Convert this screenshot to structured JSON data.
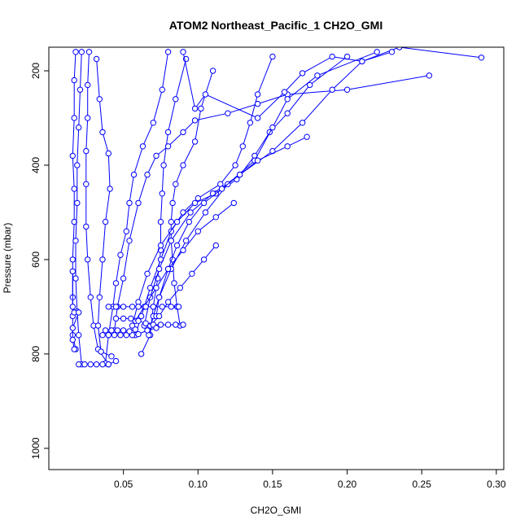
{
  "chart_data": {
    "type": "line",
    "title": "ATOM2 Northeast_Pacific_1 CH2O_GMI",
    "xlabel": "CH2O_GMI",
    "ylabel": "Pressure (mbar)",
    "xlim": [
      0.0,
      0.305
    ],
    "ylim": [
      1045,
      150
    ],
    "y_reversed": true,
    "x_ticks": [
      0.05,
      0.1,
      0.15,
      0.2,
      0.25,
      0.3
    ],
    "x_tick_labels": [
      "0.05",
      "0.10",
      "0.15",
      "0.20",
      "0.25",
      "0.30"
    ],
    "y_ticks": [
      200,
      400,
      600,
      800,
      1000
    ],
    "y_tick_labels": [
      "200",
      "400",
      "600",
      "800",
      "1000"
    ],
    "grid": false,
    "marker": "open-circle",
    "color": "#0000ff",
    "series": [
      {
        "values": [
          [
            0.018,
            160
          ],
          [
            0.017,
            220
          ],
          [
            0.017,
            300
          ],
          [
            0.016,
            380
          ],
          [
            0.017,
            450
          ],
          [
            0.017,
            520
          ],
          [
            0.016,
            600
          ],
          [
            0.016,
            680
          ],
          [
            0.016,
            720
          ],
          [
            0.016,
            760
          ],
          [
            0.018,
            790
          ]
        ]
      },
      {
        "values": [
          [
            0.022,
            160
          ],
          [
            0.021,
            240
          ],
          [
            0.02,
            320
          ],
          [
            0.019,
            400
          ],
          [
            0.019,
            480
          ],
          [
            0.018,
            560
          ],
          [
            0.018,
            640
          ],
          [
            0.019,
            710
          ],
          [
            0.02,
            760
          ],
          [
            0.022,
            822
          ]
        ]
      },
      {
        "values": [
          [
            0.027,
            160
          ],
          [
            0.026,
            230
          ],
          [
            0.026,
            300
          ],
          [
            0.025,
            370
          ],
          [
            0.025,
            440
          ],
          [
            0.025,
            530
          ],
          [
            0.026,
            600
          ],
          [
            0.028,
            680
          ],
          [
            0.03,
            740
          ],
          [
            0.033,
            790
          ],
          [
            0.04,
            822
          ],
          [
            0.045,
            815
          ]
        ]
      },
      {
        "values": [
          [
            0.032,
            175
          ],
          [
            0.034,
            260
          ],
          [
            0.036,
            330
          ],
          [
            0.04,
            375
          ],
          [
            0.041,
            450
          ],
          [
            0.038,
            520
          ],
          [
            0.036,
            600
          ],
          [
            0.034,
            680
          ],
          [
            0.033,
            740
          ],
          [
            0.035,
            795
          ],
          [
            0.042,
            805
          ]
        ]
      },
      {
        "values": [
          [
            0.08,
            160
          ],
          [
            0.076,
            240
          ],
          [
            0.07,
            310
          ],
          [
            0.063,
            360
          ],
          [
            0.057,
            420
          ],
          [
            0.054,
            480
          ],
          [
            0.052,
            540
          ],
          [
            0.048,
            590
          ],
          [
            0.045,
            650
          ],
          [
            0.043,
            700
          ],
          [
            0.04,
            760
          ],
          [
            0.038,
            820
          ]
        ]
      },
      {
        "values": [
          [
            0.092,
            175
          ],
          [
            0.085,
            260
          ],
          [
            0.08,
            330
          ],
          [
            0.077,
            400
          ],
          [
            0.076,
            460
          ],
          [
            0.075,
            520
          ],
          [
            0.075,
            580
          ],
          [
            0.073,
            640
          ],
          [
            0.07,
            700
          ],
          [
            0.068,
            760
          ],
          [
            0.062,
            800
          ]
        ]
      },
      {
        "values": [
          [
            0.11,
            200
          ],
          [
            0.102,
            280
          ],
          [
            0.098,
            350
          ],
          [
            0.09,
            400
          ],
          [
            0.085,
            440
          ],
          [
            0.083,
            480
          ],
          [
            0.082,
            520
          ],
          [
            0.082,
            560
          ],
          [
            0.083,
            600
          ],
          [
            0.084,
            650
          ],
          [
            0.086,
            700
          ],
          [
            0.088,
            740
          ]
        ]
      },
      {
        "values": [
          [
            0.15,
            170
          ],
          [
            0.14,
            250
          ],
          [
            0.135,
            310
          ],
          [
            0.13,
            360
          ],
          [
            0.125,
            400
          ],
          [
            0.115,
            440
          ],
          [
            0.1,
            470
          ],
          [
            0.09,
            500
          ],
          [
            0.082,
            540
          ],
          [
            0.075,
            600
          ],
          [
            0.068,
            660
          ],
          [
            0.062,
            720
          ],
          [
            0.058,
            760
          ]
        ]
      },
      {
        "values": [
          [
            0.2,
            170
          ],
          [
            0.175,
            230
          ],
          [
            0.16,
            290
          ],
          [
            0.148,
            330
          ],
          [
            0.138,
            380
          ],
          [
            0.126,
            430
          ],
          [
            0.112,
            460
          ],
          [
            0.098,
            480
          ],
          [
            0.086,
            520
          ],
          [
            0.075,
            570
          ],
          [
            0.066,
            630
          ],
          [
            0.06,
            690
          ],
          [
            0.056,
            740
          ]
        ]
      },
      {
        "values": [
          [
            0.255,
            210
          ],
          [
            0.2,
            240
          ],
          [
            0.16,
            250
          ],
          [
            0.14,
            270
          ],
          [
            0.12,
            290
          ],
          [
            0.098,
            305
          ],
          [
            0.09,
            330
          ],
          [
            0.08,
            360
          ],
          [
            0.072,
            380
          ],
          [
            0.066,
            420
          ],
          [
            0.06,
            480
          ],
          [
            0.054,
            560
          ],
          [
            0.05,
            640
          ],
          [
            0.046,
            700
          ],
          [
            0.044,
            750
          ]
        ]
      },
      {
        "values": [
          [
            0.29,
            172
          ],
          [
            0.235,
            150
          ],
          [
            0.21,
            180
          ],
          [
            0.19,
            240
          ],
          [
            0.17,
            310
          ],
          [
            0.15,
            370
          ],
          [
            0.128,
            420
          ],
          [
            0.11,
            460
          ],
          [
            0.095,
            500
          ],
          [
            0.082,
            560
          ],
          [
            0.074,
            620
          ],
          [
            0.068,
            680
          ],
          [
            0.064,
            740
          ]
        ]
      },
      {
        "values": [
          [
            0.22,
            160
          ],
          [
            0.18,
            210
          ],
          [
            0.16,
            260
          ],
          [
            0.15,
            320
          ],
          [
            0.138,
            390
          ],
          [
            0.12,
            440
          ],
          [
            0.105,
            500
          ],
          [
            0.092,
            560
          ],
          [
            0.082,
            620
          ],
          [
            0.074,
            680
          ],
          [
            0.07,
            720
          ],
          [
            0.067,
            760
          ]
        ]
      },
      {
        "values": [
          [
            0.173,
            340
          ],
          [
            0.16,
            360
          ],
          [
            0.14,
            390
          ],
          [
            0.128,
            420
          ],
          [
            0.116,
            450
          ],
          [
            0.104,
            480
          ],
          [
            0.094,
            520
          ],
          [
            0.086,
            570
          ],
          [
            0.08,
            620
          ],
          [
            0.074,
            680
          ],
          [
            0.072,
            720
          ]
        ]
      },
      {
        "values": [
          [
            0.112,
            570
          ],
          [
            0.104,
            600
          ],
          [
            0.096,
            630
          ],
          [
            0.088,
            660
          ],
          [
            0.08,
            690
          ],
          [
            0.074,
            720
          ],
          [
            0.068,
            740
          ]
        ]
      },
      {
        "values": [
          [
            0.124,
            480
          ],
          [
            0.112,
            510
          ],
          [
            0.1,
            540
          ],
          [
            0.09,
            580
          ],
          [
            0.08,
            620
          ],
          [
            0.072,
            660
          ],
          [
            0.064,
            700
          ],
          [
            0.058,
            730
          ]
        ]
      },
      {
        "values": [
          [
            0.04,
            700
          ],
          [
            0.045,
            700
          ],
          [
            0.05,
            700
          ],
          [
            0.056,
            700
          ],
          [
            0.06,
            700
          ],
          [
            0.065,
            700
          ],
          [
            0.07,
            700
          ],
          [
            0.076,
            700
          ],
          [
            0.082,
            700
          ],
          [
            0.087,
            700
          ]
        ]
      },
      {
        "values": [
          [
            0.045,
            725
          ],
          [
            0.05,
            725
          ],
          [
            0.055,
            725
          ],
          [
            0.06,
            730
          ],
          [
            0.065,
            735
          ],
          [
            0.07,
            738
          ],
          [
            0.075,
            738
          ],
          [
            0.08,
            738
          ],
          [
            0.085,
            738
          ],
          [
            0.09,
            738
          ]
        ]
      },
      {
        "values": [
          [
            0.036,
            760
          ],
          [
            0.04,
            760
          ],
          [
            0.044,
            760
          ],
          [
            0.048,
            760
          ],
          [
            0.052,
            760
          ],
          [
            0.056,
            760
          ],
          [
            0.06,
            758
          ],
          [
            0.066,
            750
          ],
          [
            0.072,
            745
          ]
        ]
      },
      {
        "values": [
          [
            0.038,
            750
          ],
          [
            0.042,
            750
          ],
          [
            0.046,
            750
          ],
          [
            0.05,
            750
          ],
          [
            0.054,
            752
          ],
          [
            0.058,
            748
          ]
        ]
      },
      {
        "values": [
          [
            0.016,
            625
          ],
          [
            0.016,
            700
          ],
          [
            0.017,
            712
          ],
          [
            0.02,
            712
          ],
          [
            0.016,
            745
          ],
          [
            0.016,
            770
          ],
          [
            0.017,
            790
          ]
        ]
      },
      {
        "values": [
          [
            0.02,
            822
          ],
          [
            0.024,
            822
          ],
          [
            0.028,
            822
          ],
          [
            0.032,
            822
          ],
          [
            0.036,
            822
          ],
          [
            0.04,
            822
          ]
        ]
      },
      {
        "values": [
          [
            0.09,
            160
          ],
          [
            0.098,
            280
          ],
          [
            0.105,
            250
          ],
          [
            0.14,
            300
          ],
          [
            0.158,
            245
          ],
          [
            0.17,
            205
          ],
          [
            0.19,
            170
          ],
          [
            0.21,
            180
          ],
          [
            0.23,
            160
          ]
        ]
      }
    ]
  }
}
